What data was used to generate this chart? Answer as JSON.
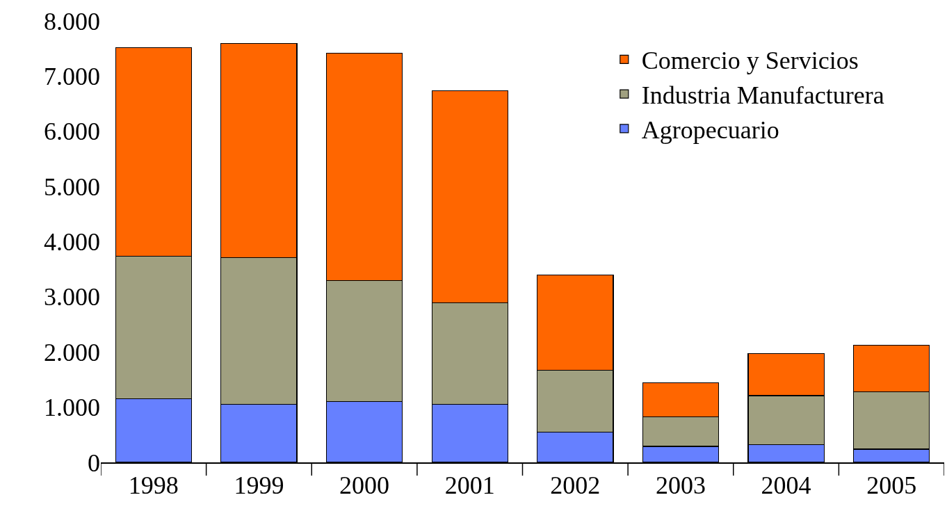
{
  "chart_data": {
    "type": "bar",
    "stacked": true,
    "categories": [
      "1998",
      "1999",
      "2000",
      "2001",
      "2002",
      "2003",
      "2004",
      "2005"
    ],
    "series": [
      {
        "name": "Agropecuario",
        "color": "#6680ff",
        "values": [
          1150,
          1050,
          1100,
          1050,
          550,
          290,
          320,
          240
        ]
      },
      {
        "name": "Industria Manufacturera",
        "color": "#a0a080",
        "values": [
          2590,
          2660,
          2190,
          1840,
          1120,
          540,
          890,
          1040
        ]
      },
      {
        "name": "Comercio y Servicios",
        "color": "#ff6600",
        "values": [
          3780,
          3880,
          4120,
          3840,
          1730,
          610,
          760,
          840
        ]
      }
    ],
    "ylim": [
      0,
      8000
    ],
    "yticks": [
      {
        "value": 0,
        "label": "0"
      },
      {
        "value": 1000,
        "label": "1.000"
      },
      {
        "value": 2000,
        "label": "2.000"
      },
      {
        "value": 3000,
        "label": "3.000"
      },
      {
        "value": 4000,
        "label": "4.000"
      },
      {
        "value": 5000,
        "label": "5.000"
      },
      {
        "value": 6000,
        "label": "6.000"
      },
      {
        "value": 7000,
        "label": "7.000"
      },
      {
        "value": 8000,
        "label": "8.000"
      }
    ],
    "grid": false,
    "legend": "top right"
  }
}
